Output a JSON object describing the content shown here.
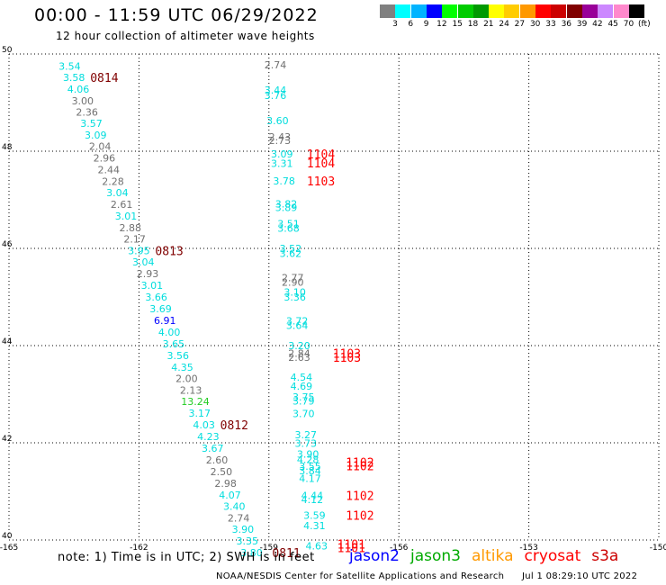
{
  "header": {
    "title": "00:00 - 11:59 UTC 06/29/2022",
    "subtitle": "12 hour collection of altimeter wave heights"
  },
  "legend": {
    "colors": [
      "#808080",
      "#00ffff",
      "#00b4ff",
      "#0000ff",
      "#00ff00",
      "#00cc00",
      "#009900",
      "#ffff00",
      "#ffcc00",
      "#ff9900",
      "#ff0000",
      "#cc0000",
      "#800000",
      "#990099",
      "#cc88ff",
      "#ff88cc",
      "#000000"
    ],
    "labels": [
      "3",
      "6",
      "9",
      "12",
      "15",
      "18",
      "21",
      "24",
      "27",
      "30",
      "33",
      "36",
      "39",
      "42",
      "45",
      "70",
      "(ft)"
    ]
  },
  "colors": {
    "gray": "#707070",
    "cyan": "#00dddd",
    "blue": "#0000ff",
    "green": "#22cc22",
    "red": "#ff0000",
    "maroon": "#800000"
  },
  "axes": {
    "lon_ticks": [
      "-165",
      "-162",
      "-159",
      "-156",
      "-153",
      "-150"
    ],
    "lat_ticks": [
      "50",
      "48",
      "46",
      "44",
      "42",
      "40"
    ]
  },
  "observations": [
    {
      "v": "3.54",
      "lon": -163.6,
      "lat": 49.75,
      "c": "cyan"
    },
    {
      "v": "3.58",
      "lon": -163.5,
      "lat": 49.52,
      "c": "cyan"
    },
    {
      "v": "4.06",
      "lon": -163.4,
      "lat": 49.28,
      "c": "cyan"
    },
    {
      "v": "3.00",
      "lon": -163.3,
      "lat": 49.04,
      "c": "gray"
    },
    {
      "v": "2.36",
      "lon": -163.2,
      "lat": 48.81,
      "c": "gray"
    },
    {
      "v": "3.57",
      "lon": -163.1,
      "lat": 48.57,
      "c": "cyan"
    },
    {
      "v": "3.09",
      "lon": -163.0,
      "lat": 48.33,
      "c": "cyan"
    },
    {
      "v": "2.04",
      "lon": -162.9,
      "lat": 48.1,
      "c": "gray"
    },
    {
      "v": "2.96",
      "lon": -162.8,
      "lat": 47.86,
      "c": "gray"
    },
    {
      "v": "2.44",
      "lon": -162.7,
      "lat": 47.62,
      "c": "gray"
    },
    {
      "v": "2.28",
      "lon": -162.6,
      "lat": 47.38,
      "c": "gray"
    },
    {
      "v": "3.04",
      "lon": -162.5,
      "lat": 47.15,
      "c": "cyan"
    },
    {
      "v": "2.61",
      "lon": -162.4,
      "lat": 46.91,
      "c": "gray"
    },
    {
      "v": "3.01",
      "lon": -162.3,
      "lat": 46.67,
      "c": "cyan"
    },
    {
      "v": "2.88",
      "lon": -162.2,
      "lat": 46.43,
      "c": "gray"
    },
    {
      "v": "2.17",
      "lon": -162.1,
      "lat": 46.19,
      "c": "gray"
    },
    {
      "v": "3.95",
      "lon": -162.0,
      "lat": 45.95,
      "c": "cyan"
    },
    {
      "v": "3.04",
      "lon": -161.9,
      "lat": 45.72,
      "c": "cyan"
    },
    {
      "v": "2.93",
      "lon": -161.8,
      "lat": 45.48,
      "c": "gray"
    },
    {
      "v": "3.01",
      "lon": -161.7,
      "lat": 45.24,
      "c": "cyan"
    },
    {
      "v": "3.66",
      "lon": -161.6,
      "lat": 45.0,
      "c": "cyan"
    },
    {
      "v": "3.69",
      "lon": -161.5,
      "lat": 44.76,
      "c": "cyan"
    },
    {
      "v": "6.91",
      "lon": -161.4,
      "lat": 44.52,
      "c": "blue"
    },
    {
      "v": "4.00",
      "lon": -161.3,
      "lat": 44.28,
      "c": "cyan"
    },
    {
      "v": "3.65",
      "lon": -161.2,
      "lat": 44.04,
      "c": "cyan"
    },
    {
      "v": "3.56",
      "lon": -161.1,
      "lat": 43.8,
      "c": "cyan"
    },
    {
      "v": "4.35",
      "lon": -161.0,
      "lat": 43.56,
      "c": "cyan"
    },
    {
      "v": "2.00",
      "lon": -160.9,
      "lat": 43.32,
      "c": "gray"
    },
    {
      "v": "2.13",
      "lon": -160.8,
      "lat": 43.08,
      "c": "gray"
    },
    {
      "v": "13.24",
      "lon": -160.7,
      "lat": 42.85,
      "c": "green"
    },
    {
      "v": "3.17",
      "lon": -160.6,
      "lat": 42.61,
      "c": "cyan"
    },
    {
      "v": "4.03",
      "lon": -160.5,
      "lat": 42.37,
      "c": "cyan"
    },
    {
      "v": "4.23",
      "lon": -160.4,
      "lat": 42.13,
      "c": "cyan"
    },
    {
      "v": "3.67",
      "lon": -160.3,
      "lat": 41.89,
      "c": "cyan"
    },
    {
      "v": "2.60",
      "lon": -160.2,
      "lat": 41.65,
      "c": "gray"
    },
    {
      "v": "2.50",
      "lon": -160.1,
      "lat": 41.41,
      "c": "gray"
    },
    {
      "v": "2.98",
      "lon": -160.0,
      "lat": 41.17,
      "c": "gray"
    },
    {
      "v": "4.07",
      "lon": -159.9,
      "lat": 40.93,
      "c": "cyan"
    },
    {
      "v": "3.40",
      "lon": -159.8,
      "lat": 40.69,
      "c": "cyan"
    },
    {
      "v": "2.74",
      "lon": -159.7,
      "lat": 40.45,
      "c": "gray"
    },
    {
      "v": "3.90",
      "lon": -159.6,
      "lat": 40.22,
      "c": "cyan"
    },
    {
      "v": "3.35",
      "lon": -159.5,
      "lat": 39.98,
      "c": "cyan"
    },
    {
      "v": "3.80",
      "lon": -159.4,
      "lat": 39.74,
      "c": "cyan"
    },
    {
      "v": "2.74",
      "lon": -158.85,
      "lat": 49.78,
      "c": "gray"
    },
    {
      "v": "3.44",
      "lon": -158.85,
      "lat": 49.26,
      "c": "cyan"
    },
    {
      "v": "3.76",
      "lon": -158.85,
      "lat": 49.15,
      "c": "cyan"
    },
    {
      "v": "3.60",
      "lon": -158.8,
      "lat": 48.63,
      "c": "cyan"
    },
    {
      "v": "2.43",
      "lon": -158.75,
      "lat": 48.3,
      "c": "gray"
    },
    {
      "v": "2.73",
      "lon": -158.75,
      "lat": 48.22,
      "c": "gray"
    },
    {
      "v": "3.09",
      "lon": -158.7,
      "lat": 47.94,
      "c": "cyan"
    },
    {
      "v": "3.31",
      "lon": -158.7,
      "lat": 47.75,
      "c": "cyan"
    },
    {
      "v": "3.78",
      "lon": -158.65,
      "lat": 47.39,
      "c": "cyan"
    },
    {
      "v": "3.82",
      "lon": -158.6,
      "lat": 46.92,
      "c": "cyan"
    },
    {
      "v": "3.89",
      "lon": -158.6,
      "lat": 46.84,
      "c": "cyan"
    },
    {
      "v": "3.51",
      "lon": -158.55,
      "lat": 46.51,
      "c": "cyan"
    },
    {
      "v": "3.68",
      "lon": -158.55,
      "lat": 46.42,
      "c": "cyan"
    },
    {
      "v": "3.52",
      "lon": -158.5,
      "lat": 46.0,
      "c": "cyan"
    },
    {
      "v": "3.62",
      "lon": -158.5,
      "lat": 45.9,
      "c": "cyan"
    },
    {
      "v": "2.77",
      "lon": -158.45,
      "lat": 45.4,
      "c": "gray"
    },
    {
      "v": "2.90",
      "lon": -158.45,
      "lat": 45.31,
      "c": "gray"
    },
    {
      "v": "3.10",
      "lon": -158.4,
      "lat": 45.1,
      "c": "cyan"
    },
    {
      "v": "3.36",
      "lon": -158.4,
      "lat": 45.0,
      "c": "cyan"
    },
    {
      "v": "3.72",
      "lon": -158.35,
      "lat": 44.51,
      "c": "cyan"
    },
    {
      "v": "3.64",
      "lon": -158.35,
      "lat": 44.42,
      "c": "cyan"
    },
    {
      "v": "3.20",
      "lon": -158.3,
      "lat": 44.0,
      "c": "cyan"
    },
    {
      "v": "2.84",
      "lon": -158.3,
      "lat": 43.84,
      "c": "gray"
    },
    {
      "v": "2.63",
      "lon": -158.3,
      "lat": 43.76,
      "c": "gray"
    },
    {
      "v": "4.54",
      "lon": -158.25,
      "lat": 43.35,
      "c": "cyan"
    },
    {
      "v": "4.69",
      "lon": -158.25,
      "lat": 43.17,
      "c": "cyan"
    },
    {
      "v": "3.75",
      "lon": -158.2,
      "lat": 42.94,
      "c": "cyan"
    },
    {
      "v": "3.79",
      "lon": -158.2,
      "lat": 42.86,
      "c": "cyan"
    },
    {
      "v": "3.70",
      "lon": -158.2,
      "lat": 42.6,
      "c": "cyan"
    },
    {
      "v": "3.27",
      "lon": -158.15,
      "lat": 42.17,
      "c": "cyan"
    },
    {
      "v": "3.73",
      "lon": -158.15,
      "lat": 41.99,
      "c": "cyan"
    },
    {
      "v": "3.90",
      "lon": -158.1,
      "lat": 41.77,
      "c": "cyan"
    },
    {
      "v": "4.28",
      "lon": -158.1,
      "lat": 41.66,
      "c": "cyan"
    },
    {
      "v": "3.55",
      "lon": -158.05,
      "lat": 41.52,
      "c": "cyan"
    },
    {
      "v": "3.84",
      "lon": -158.05,
      "lat": 41.43,
      "c": "cyan"
    },
    {
      "v": "4.17",
      "lon": -158.05,
      "lat": 41.27,
      "c": "cyan"
    },
    {
      "v": "4.44",
      "lon": -158.0,
      "lat": 40.92,
      "c": "cyan"
    },
    {
      "v": "4.12",
      "lon": -158.0,
      "lat": 40.83,
      "c": "cyan"
    },
    {
      "v": "3.59",
      "lon": -157.95,
      "lat": 40.51,
      "c": "cyan"
    },
    {
      "v": "4.31",
      "lon": -157.95,
      "lat": 40.3,
      "c": "cyan"
    },
    {
      "v": "4.63",
      "lon": -157.9,
      "lat": 39.88,
      "c": "cyan"
    }
  ],
  "time_labels": [
    {
      "t": "0814",
      "lon": -162.8,
      "lat": 49.52,
      "c": "maroon"
    },
    {
      "t": "0813",
      "lon": -161.3,
      "lat": 45.95,
      "c": "maroon"
    },
    {
      "t": "0812",
      "lon": -159.8,
      "lat": 42.37,
      "c": "maroon"
    },
    {
      "t": "0811",
      "lon": -158.6,
      "lat": 39.74,
      "c": "maroon"
    },
    {
      "t": "1104",
      "lon": -157.8,
      "lat": 47.94,
      "c": "red"
    },
    {
      "t": "1104",
      "lon": -157.8,
      "lat": 47.76,
      "c": "red"
    },
    {
      "t": "1103",
      "lon": -157.8,
      "lat": 47.39,
      "c": "red"
    },
    {
      "t": "1103",
      "lon": -157.2,
      "lat": 43.84,
      "c": "red"
    },
    {
      "t": "1103",
      "lon": -157.2,
      "lat": 43.76,
      "c": "red"
    },
    {
      "t": "1102",
      "lon": -156.9,
      "lat": 41.6,
      "c": "red"
    },
    {
      "t": "1102",
      "lon": -156.9,
      "lat": 41.53,
      "c": "red"
    },
    {
      "t": "1102",
      "lon": -156.9,
      "lat": 40.92,
      "c": "red"
    },
    {
      "t": "1102",
      "lon": -156.9,
      "lat": 40.51,
      "c": "red"
    },
    {
      "t": "1101",
      "lon": -157.1,
      "lat": 39.92,
      "c": "red"
    },
    {
      "t": "1101",
      "lon": -157.1,
      "lat": 39.84,
      "c": "red"
    }
  ],
  "footer": {
    "note": "note: 1) Time is in UTC; 2) SWH is in feet",
    "satellites": [
      {
        "name": "jason2",
        "color": "#0000ff"
      },
      {
        "name": "jason3",
        "color": "#00aa00"
      },
      {
        "name": "altika",
        "color": "#ff9900"
      },
      {
        "name": "cryosat",
        "color": "#ff0000"
      },
      {
        "name": "s3a",
        "color": "#cc0000"
      }
    ],
    "credit": "NOAA/NESDIS Center for Satellite Applications and Research",
    "timestamp": "Jul  1 08:29:10 UTC 2022"
  }
}
